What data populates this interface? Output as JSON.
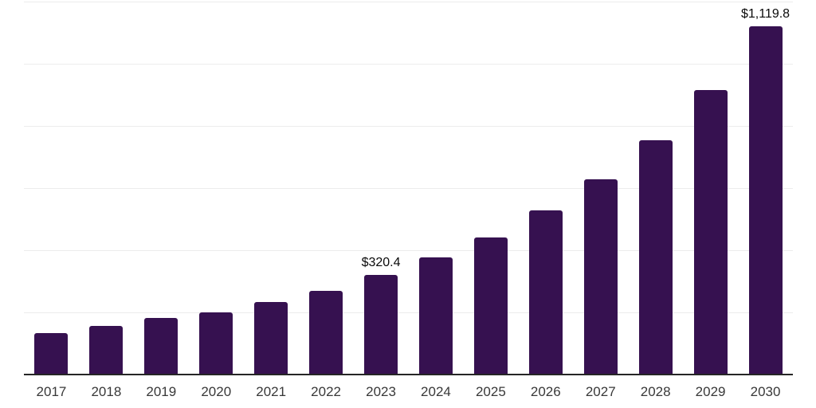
{
  "chart_data": {
    "type": "bar",
    "title": "",
    "xlabel": "",
    "ylabel": "",
    "categories": [
      "2017",
      "2018",
      "2019",
      "2020",
      "2021",
      "2022",
      "2023",
      "2024",
      "2025",
      "2026",
      "2027",
      "2028",
      "2029",
      "2030"
    ],
    "values": [
      133,
      156,
      181,
      201,
      233,
      270,
      320.4,
      377,
      442,
      528,
      629,
      755,
      916,
      1119.8
    ],
    "data_labels": {
      "2023": "$320.4",
      "2030": "$1,119.8"
    },
    "ylim": [
      0,
      1200
    ],
    "ytick_step": 200,
    "grid": "horizontal",
    "y_axis_tick_labels_visible": false,
    "legend": "none",
    "colors": {
      "bar": "#361150",
      "gridline": "#ececec",
      "axis_line": "#262626",
      "x_tick_label": "#383838",
      "data_label": "#0a0a0a",
      "background": "#ffffff"
    }
  }
}
